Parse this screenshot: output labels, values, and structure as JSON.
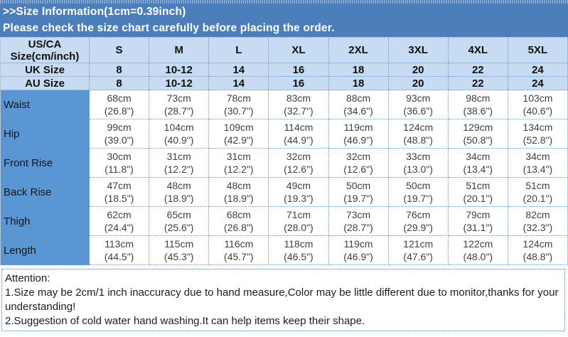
{
  "colors": {
    "banner_bg": "#4d7ebc",
    "header_bg": "#c7dcf2",
    "label_bg": "#5b96d4",
    "border": "#6e97cc",
    "banner_text": "#ffffff",
    "data_text": "#3f3f3f"
  },
  "banner": {
    "line1": ">>Size Information(1cm=0.39inch)",
    "line2": "Please check the size chart carefully before placing the order."
  },
  "table": {
    "corner": {
      "line1": "US/CA",
      "line2": "Size(cm/inch)"
    },
    "size_headers": [
      "S",
      "M",
      "L",
      "XL",
      "2XL",
      "3XL",
      "4XL",
      "5XL"
    ],
    "size_rows": [
      {
        "label": "UK Size",
        "values": [
          "8",
          "10-12",
          "14",
          "16",
          "18",
          "20",
          "22",
          "24"
        ]
      },
      {
        "label": "AU Size",
        "values": [
          "8",
          "10-12",
          "14",
          "16",
          "18",
          "20",
          "22",
          "24"
        ]
      }
    ],
    "measurement_rows": [
      {
        "label": "Waist",
        "cm": [
          "68cm",
          "73cm",
          "78cm",
          "83cm",
          "88cm",
          "93cm",
          "98cm",
          "103cm"
        ],
        "inch": [
          "(26.8\")",
          "(28.7\")",
          "(30.7\")",
          "(32.7\")",
          "(34.6\")",
          "(36.6\")",
          "(38.6\")",
          "(40.6\")"
        ]
      },
      {
        "label": "Hip",
        "cm": [
          "99cm",
          "104cm",
          "109cm",
          "114cm",
          "119cm",
          "124cm",
          "129cm",
          "134cm"
        ],
        "inch": [
          "(39.0\")",
          "(40.9\")",
          "(42.9\")",
          "(44.9\")",
          "(46.9\")",
          "(48.8\")",
          "(50.8\")",
          "(52.8\")"
        ]
      },
      {
        "label": "Front Rise",
        "cm": [
          "30cm",
          "31cm",
          "31cm",
          "32cm",
          "32cm",
          "33cm",
          "34cm",
          "34cm"
        ],
        "inch": [
          "(11.8\")",
          "(12.2\")",
          "(12.2\")",
          "(12.6\")",
          "(12.6\")",
          "(13.0\")",
          "(13.4\")",
          "(13.4\")"
        ]
      },
      {
        "label": "Back Rise",
        "cm": [
          "47cm",
          "48cm",
          "48cm",
          "49cm",
          "50cm",
          "50cm",
          "51cm",
          "51cm"
        ],
        "inch": [
          "(18.5\")",
          "(18.9\")",
          "(18.9\")",
          "(19.3\")",
          "(19.7\")",
          "(19.7\")",
          "(20.1\")",
          "(20.1\")"
        ]
      },
      {
        "label": "Thigh",
        "cm": [
          "62cm",
          "65cm",
          "68cm",
          "71cm",
          "73cm",
          "76cm",
          "79cm",
          "82cm"
        ],
        "inch": [
          "(24.4\")",
          "(25.6\")",
          "(26.8\")",
          "(28.0\")",
          "(28.7\")",
          "(29.9\")",
          "(31.1\")",
          "(32.3\")"
        ]
      },
      {
        "label": "Length",
        "cm": [
          "113cm",
          "115cm",
          "116cm",
          "118cm",
          "119cm",
          "121cm",
          "122cm",
          "124cm"
        ],
        "inch": [
          "(44.5\")",
          "(45.3\")",
          "(45.7\")",
          "(46.5\")",
          "(46.9\")",
          "(47.6\")",
          "(48.0\")",
          "(48.8\")"
        ]
      }
    ]
  },
  "attention": {
    "lines": [
      "Attention:",
      "1.Size may be 2cm/1 inch inaccuracy due to hand measure,Color may be little different due to monitor,thanks for your",
      "understanding!",
      "2.Suggestion of cold water hand washing.It can help items keep their shape."
    ]
  }
}
